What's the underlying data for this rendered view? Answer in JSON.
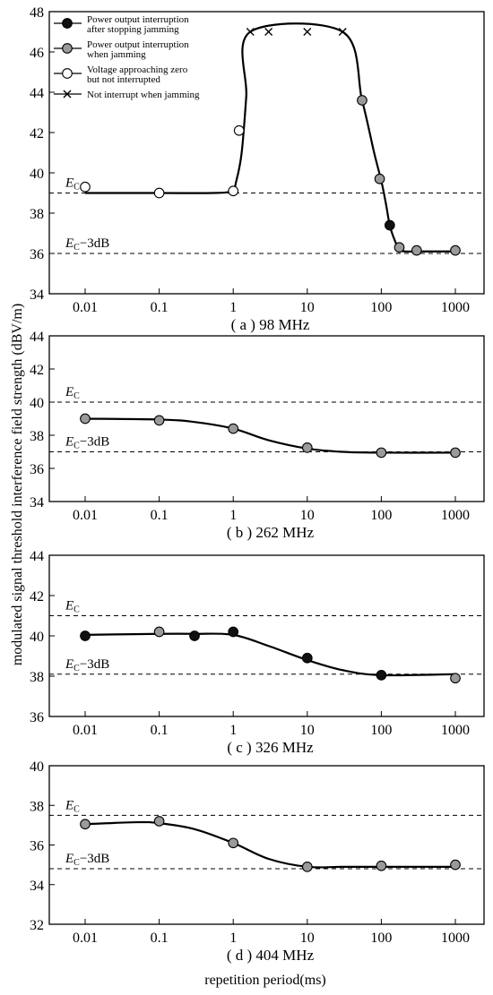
{
  "figure": {
    "ylabel": "modulated signal threshold interference field  strength (dBV/m)",
    "xlabel": "repetition period(ms)",
    "legend": [
      {
        "key": "after_stop",
        "line1": "Power output interruption",
        "line2": "after stopping jamming",
        "fill": "#111111"
      },
      {
        "key": "when_jam",
        "line1": "Power output interruption",
        "line2": "when jamming",
        "fill": "#9a9a9a"
      },
      {
        "key": "near_zero",
        "line1": "Voltage approaching zero",
        "line2": "but not interrupted",
        "fill": "#ffffff"
      },
      {
        "key": "not_interrupt",
        "line1": "Not interrupt when jamming",
        "line2": "",
        "fill": "none"
      }
    ],
    "ec_label": "E",
    "ec_sub": "C",
    "ec3_suffix": "−3dB"
  },
  "chart_data": [
    {
      "type": "line",
      "subtitle": "( a ) 98 MHz",
      "xscale": "log",
      "x_ticks": [
        "0.01",
        "0.1",
        "1",
        "10",
        "100",
        "1000"
      ],
      "y_ticks": [
        "34",
        "36",
        "38",
        "40",
        "42",
        "44",
        "46",
        "48"
      ],
      "ylim": [
        34,
        48
      ],
      "ref_lines": {
        "Ec": 39,
        "Ec_minus_3dB": 36
      },
      "curve_x": [
        0.01,
        0.1,
        0.5,
        0.95,
        1.1,
        1.3,
        1.5,
        1.7,
        30,
        55,
        80,
        100,
        115,
        130,
        150,
        175,
        210,
        300,
        1000
      ],
      "curve_y": [
        39,
        39,
        39,
        39.1,
        39.6,
        41,
        43.8,
        47,
        47,
        43.6,
        41,
        39.6,
        38.5,
        37.4,
        36.7,
        36.2,
        36.1,
        36.1,
        36.1
      ],
      "points": [
        {
          "x": 0.01,
          "y": 39.3,
          "marker": "near_zero"
        },
        {
          "x": 0.1,
          "y": 39,
          "marker": "near_zero"
        },
        {
          "x": 1,
          "y": 39.1,
          "marker": "near_zero"
        },
        {
          "x": 1.2,
          "y": 42.1,
          "marker": "near_zero"
        },
        {
          "x": 1.7,
          "y": 47,
          "marker": "not_interrupt"
        },
        {
          "x": 3,
          "y": 47,
          "marker": "not_interrupt"
        },
        {
          "x": 10,
          "y": 47,
          "marker": "not_interrupt"
        },
        {
          "x": 30,
          "y": 47,
          "marker": "not_interrupt"
        },
        {
          "x": 55,
          "y": 43.6,
          "marker": "when_jam"
        },
        {
          "x": 95,
          "y": 39.7,
          "marker": "when_jam"
        },
        {
          "x": 130,
          "y": 37.4,
          "marker": "after_stop"
        },
        {
          "x": 175,
          "y": 36.3,
          "marker": "when_jam"
        },
        {
          "x": 300,
          "y": 36.15,
          "marker": "when_jam"
        },
        {
          "x": 1000,
          "y": 36.15,
          "marker": "when_jam"
        }
      ]
    },
    {
      "type": "line",
      "subtitle": "( b ) 262 MHz",
      "xscale": "log",
      "x_ticks": [
        "0.01",
        "0.1",
        "1",
        "10",
        "100",
        "1000"
      ],
      "y_ticks": [
        "34",
        "36",
        "38",
        "40",
        "42",
        "44"
      ],
      "ylim": [
        34,
        44
      ],
      "ref_lines": {
        "Ec": 40,
        "Ec_minus_3dB": 37
      },
      "curve_x": [
        0.01,
        0.1,
        0.3,
        1,
        3,
        10,
        30,
        100,
        1000
      ],
      "curve_y": [
        39,
        38.95,
        38.8,
        38.4,
        37.7,
        37.2,
        37,
        36.95,
        36.95
      ],
      "points": [
        {
          "x": 0.01,
          "y": 39,
          "marker": "when_jam"
        },
        {
          "x": 0.1,
          "y": 38.9,
          "marker": "when_jam"
        },
        {
          "x": 1,
          "y": 38.4,
          "marker": "when_jam"
        },
        {
          "x": 10,
          "y": 37.25,
          "marker": "when_jam"
        },
        {
          "x": 100,
          "y": 36.95,
          "marker": "when_jam"
        },
        {
          "x": 1000,
          "y": 36.95,
          "marker": "when_jam"
        }
      ]
    },
    {
      "type": "line",
      "subtitle": "( c ) 326 MHz",
      "xscale": "log",
      "x_ticks": [
        "0.01",
        "0.1",
        "1",
        "10",
        "100",
        "1000"
      ],
      "y_ticks": [
        "36",
        "38",
        "40",
        "42",
        "44"
      ],
      "ylim": [
        36,
        44
      ],
      "ref_lines": {
        "Ec": 41,
        "Ec_minus_3dB": 38.1
      },
      "curve_x": [
        0.01,
        0.1,
        0.3,
        1,
        3,
        10,
        30,
        100,
        1000
      ],
      "curve_y": [
        40.05,
        40.1,
        40.1,
        40.05,
        39.5,
        38.8,
        38.3,
        38.05,
        38.1
      ],
      "points": [
        {
          "x": 0.01,
          "y": 40,
          "marker": "after_stop"
        },
        {
          "x": 0.1,
          "y": 40.2,
          "marker": "when_jam"
        },
        {
          "x": 0.3,
          "y": 40,
          "marker": "after_stop"
        },
        {
          "x": 1,
          "y": 40.2,
          "marker": "after_stop"
        },
        {
          "x": 10,
          "y": 38.9,
          "marker": "after_stop"
        },
        {
          "x": 100,
          "y": 38.05,
          "marker": "after_stop"
        },
        {
          "x": 1000,
          "y": 37.9,
          "marker": "when_jam"
        }
      ]
    },
    {
      "type": "line",
      "subtitle": "( d ) 404 MHz",
      "xscale": "log",
      "x_ticks": [
        "0.01",
        "0.1",
        "1",
        "10",
        "100",
        "1000"
      ],
      "y_ticks": [
        "32",
        "34",
        "36",
        "38",
        "40"
      ],
      "ylim": [
        32,
        40
      ],
      "ref_lines": {
        "Ec": 37.5,
        "Ec_minus_3dB": 34.8
      },
      "curve_x": [
        0.01,
        0.05,
        0.1,
        0.3,
        1,
        3,
        10,
        30,
        100,
        1000
      ],
      "curve_y": [
        37.05,
        37.15,
        37.1,
        36.8,
        36.1,
        35.3,
        34.9,
        34.9,
        34.9,
        34.9
      ],
      "points": [
        {
          "x": 0.01,
          "y": 37.05,
          "marker": "when_jam"
        },
        {
          "x": 0.1,
          "y": 37.2,
          "marker": "when_jam"
        },
        {
          "x": 1,
          "y": 36.1,
          "marker": "when_jam"
        },
        {
          "x": 10,
          "y": 34.9,
          "marker": "when_jam"
        },
        {
          "x": 100,
          "y": 34.95,
          "marker": "when_jam"
        },
        {
          "x": 1000,
          "y": 35,
          "marker": "when_jam"
        }
      ]
    }
  ]
}
